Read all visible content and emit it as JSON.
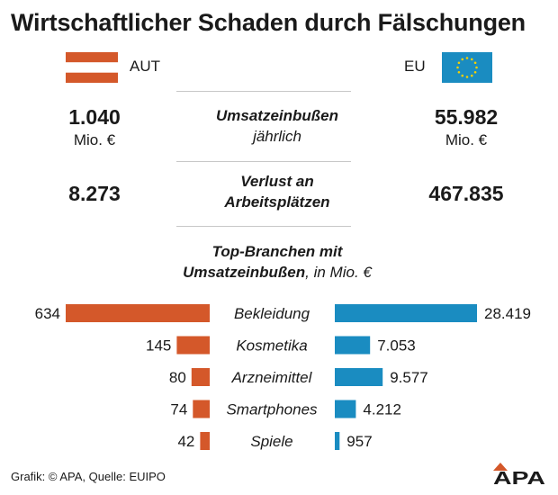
{
  "title": "Wirtschaftlicher Schaden durch Fälschungen",
  "colors": {
    "aut": "#d4582a",
    "eu": "#1a8cc1",
    "flag_white": "#ffffff",
    "eu_star": "#f5d000",
    "divider": "#c8c8c8"
  },
  "header": {
    "left_label": "AUT",
    "right_label": "EU",
    "left_flag_icon": "austria-flag-icon",
    "right_flag_icon": "eu-flag-icon"
  },
  "metrics": [
    {
      "heading": "Umsatzeinbußen",
      "subheading": "jährlich",
      "left_value": "1.040",
      "left_unit": "Mio. €",
      "right_value": "55.982",
      "right_unit": "Mio. €"
    },
    {
      "heading_line1": "Verlust an",
      "heading_line2": "Arbeitsplätzen",
      "left_value": "8.273",
      "right_value": "467.835"
    }
  ],
  "chart_data": {
    "type": "bar",
    "title_line1": "Top-Branchen mit",
    "title_line2_bold": "Umsatzeinbußen",
    "title_line2_rest": ", in Mio. €",
    "categories": [
      "Bekleidung",
      "Kosmetika",
      "Arzneimittel",
      "Smartphones",
      "Spiele"
    ],
    "series": [
      {
        "name": "AUT",
        "values": [
          634,
          145,
          80,
          74,
          42
        ],
        "labels": [
          "634",
          "145",
          "80",
          "74",
          "42"
        ]
      },
      {
        "name": "EU",
        "values": [
          28419,
          7053,
          9577,
          4212,
          957
        ],
        "labels": [
          "28.419",
          "7.053",
          "9.577",
          "4.212",
          "957"
        ]
      }
    ]
  },
  "footer": {
    "source": "Grafik: © APA, Quelle: EUIPO",
    "logo_text": "APA"
  }
}
